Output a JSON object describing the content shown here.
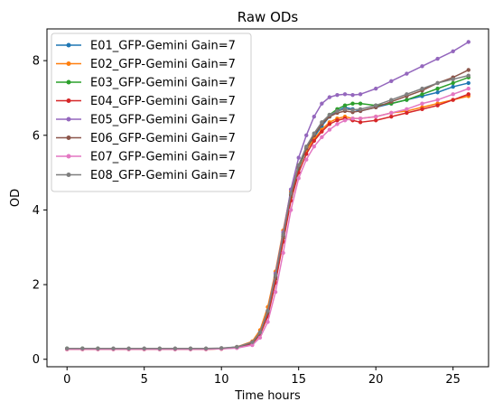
{
  "chart_data": {
    "type": "line",
    "title": "Raw ODs",
    "xlabel": "Time hours",
    "ylabel": "OD",
    "xlim": [
      -1.3,
      27.3
    ],
    "ylim": [
      -0.2,
      8.85
    ],
    "xticks": [
      0,
      5,
      10,
      15,
      20,
      25
    ],
    "yticks": [
      0,
      2,
      4,
      6,
      8
    ],
    "legend_position": "upper-left",
    "grid": false,
    "markers": true,
    "x": [
      0,
      1,
      2,
      3,
      4,
      5,
      6,
      7,
      8,
      9,
      10,
      11,
      12,
      12.5,
      13,
      13.5,
      14,
      14.5,
      15,
      15.5,
      16,
      16.5,
      17,
      17.5,
      18,
      18.5,
      19,
      20,
      21,
      22,
      23,
      24,
      25,
      26
    ],
    "series": [
      {
        "name": "E01_GFP-Gemini Gain=7",
        "color": "#1f77b4",
        "values": [
          0.28,
          0.28,
          0.28,
          0.28,
          0.28,
          0.28,
          0.27,
          0.27,
          0.27,
          0.28,
          0.29,
          0.33,
          0.45,
          0.7,
          1.25,
          2.2,
          3.3,
          4.4,
          5.15,
          5.6,
          5.95,
          6.25,
          6.5,
          6.65,
          6.75,
          6.7,
          6.65,
          6.75,
          6.85,
          6.95,
          7.05,
          7.15,
          7.3,
          7.4
        ]
      },
      {
        "name": "E02_GFP-Gemini Gain=7",
        "color": "#ff7f0e",
        "values": [
          0.27,
          0.27,
          0.27,
          0.27,
          0.27,
          0.27,
          0.27,
          0.27,
          0.27,
          0.27,
          0.28,
          0.33,
          0.48,
          0.78,
          1.4,
          2.35,
          3.45,
          4.5,
          5.2,
          5.6,
          5.9,
          6.15,
          6.35,
          6.45,
          6.5,
          6.45,
          6.45,
          6.5,
          6.6,
          6.65,
          6.75,
          6.85,
          6.95,
          7.05
        ]
      },
      {
        "name": "E03_GFP-Gemini Gain=7",
        "color": "#2ca02c",
        "values": [
          0.29,
          0.29,
          0.29,
          0.28,
          0.28,
          0.28,
          0.28,
          0.28,
          0.28,
          0.28,
          0.29,
          0.32,
          0.44,
          0.68,
          1.2,
          2.15,
          3.25,
          4.35,
          5.1,
          5.65,
          6.0,
          6.3,
          6.55,
          6.7,
          6.8,
          6.85,
          6.85,
          6.8,
          6.85,
          6.95,
          7.1,
          7.25,
          7.4,
          7.55
        ]
      },
      {
        "name": "E04_GFP-Gemini Gain=7",
        "color": "#d62728",
        "values": [
          0.27,
          0.27,
          0.27,
          0.27,
          0.27,
          0.27,
          0.27,
          0.27,
          0.27,
          0.27,
          0.28,
          0.31,
          0.42,
          0.66,
          1.15,
          2.05,
          3.15,
          4.25,
          5.0,
          5.5,
          5.85,
          6.1,
          6.3,
          6.4,
          6.45,
          6.4,
          6.35,
          6.4,
          6.5,
          6.6,
          6.7,
          6.8,
          6.95,
          7.1
        ]
      },
      {
        "name": "E05_GFP-Gemini Gain=7",
        "color": "#9467bd",
        "values": [
          0.28,
          0.28,
          0.28,
          0.28,
          0.28,
          0.28,
          0.28,
          0.28,
          0.28,
          0.28,
          0.29,
          0.32,
          0.44,
          0.72,
          1.3,
          2.3,
          3.4,
          4.55,
          5.4,
          6.0,
          6.5,
          6.85,
          7.02,
          7.08,
          7.1,
          7.08,
          7.1,
          7.25,
          7.45,
          7.65,
          7.85,
          8.05,
          8.25,
          8.5
        ]
      },
      {
        "name": "E06_GFP-Gemini Gain=7",
        "color": "#8c564b",
        "values": [
          0.28,
          0.28,
          0.28,
          0.28,
          0.28,
          0.28,
          0.28,
          0.28,
          0.28,
          0.28,
          0.29,
          0.32,
          0.44,
          0.7,
          1.25,
          2.2,
          3.3,
          4.4,
          5.15,
          5.65,
          6.0,
          6.3,
          6.5,
          6.6,
          6.65,
          6.62,
          6.65,
          6.75,
          6.9,
          7.05,
          7.2,
          7.4,
          7.55,
          7.75
        ]
      },
      {
        "name": "E07_GFP-Gemini Gain=7",
        "color": "#e377c2",
        "values": [
          0.27,
          0.27,
          0.27,
          0.27,
          0.27,
          0.27,
          0.27,
          0.27,
          0.27,
          0.27,
          0.28,
          0.3,
          0.38,
          0.58,
          1.0,
          1.8,
          2.85,
          4.0,
          4.85,
          5.35,
          5.7,
          5.95,
          6.15,
          6.3,
          6.4,
          6.45,
          6.45,
          6.5,
          6.6,
          6.7,
          6.85,
          6.95,
          7.1,
          7.25
        ]
      },
      {
        "name": "E08_GFP-Gemini Gain=7",
        "color": "#7f7f7f",
        "values": [
          0.29,
          0.29,
          0.29,
          0.29,
          0.29,
          0.29,
          0.29,
          0.29,
          0.29,
          0.29,
          0.3,
          0.33,
          0.46,
          0.72,
          1.3,
          2.25,
          3.35,
          4.45,
          5.2,
          5.7,
          6.05,
          6.35,
          6.55,
          6.65,
          6.7,
          6.68,
          6.7,
          6.8,
          6.95,
          7.1,
          7.25,
          7.4,
          7.5,
          7.6
        ]
      }
    ]
  }
}
